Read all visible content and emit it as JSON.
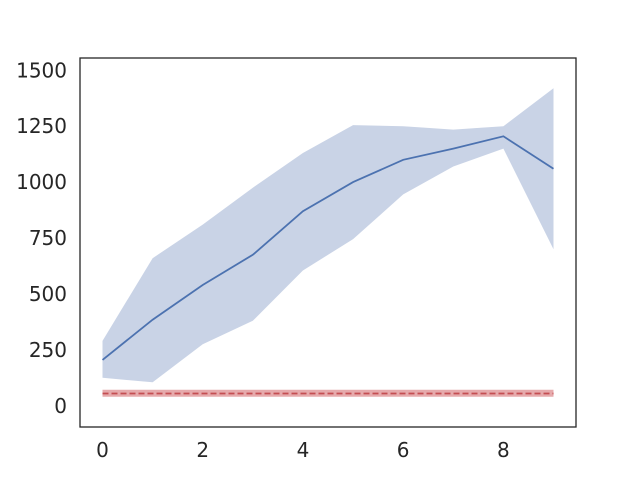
{
  "chart_data": {
    "type": "line",
    "title": "",
    "xlabel": "",
    "ylabel": "",
    "xlim": [
      -0.45,
      9.45
    ],
    "ylim": [
      -95,
      1555
    ],
    "xticks": [
      0,
      2,
      4,
      6,
      8
    ],
    "yticks": [
      0,
      250,
      500,
      750,
      1000,
      1250,
      1500
    ],
    "x_tick_labels": [
      "0",
      "2",
      "4",
      "6",
      "8"
    ],
    "y_tick_labels": [
      "0",
      "250",
      "500",
      "750",
      "1000",
      "1250",
      "1500"
    ],
    "grid": false,
    "legend": "none",
    "x": [
      0,
      1,
      2,
      3,
      4,
      5,
      6,
      7,
      8,
      9
    ],
    "series": [
      {
        "values": [
          205,
          385,
          540,
          675,
          870,
          1000,
          1100,
          1150,
          1205,
          1060
        ],
        "lower": [
          125,
          105,
          275,
          380,
          605,
          745,
          945,
          1070,
          1150,
          700
        ],
        "upper": [
          290,
          660,
          810,
          975,
          1130,
          1255,
          1250,
          1235,
          1250,
          1420
        ],
        "color": "#4c72b0",
        "band_color": "#c9d3e6",
        "style": "solid"
      },
      {
        "values": [
          55,
          55,
          55,
          55,
          55,
          55,
          55,
          55,
          55,
          55
        ],
        "lower": [
          40,
          40,
          40,
          40,
          40,
          40,
          40,
          40,
          40,
          40
        ],
        "upper": [
          72,
          72,
          72,
          72,
          72,
          72,
          72,
          72,
          72,
          72
        ],
        "color": "#c44e52",
        "band_color": "#e6aaac",
        "style": "dashed"
      }
    ]
  }
}
